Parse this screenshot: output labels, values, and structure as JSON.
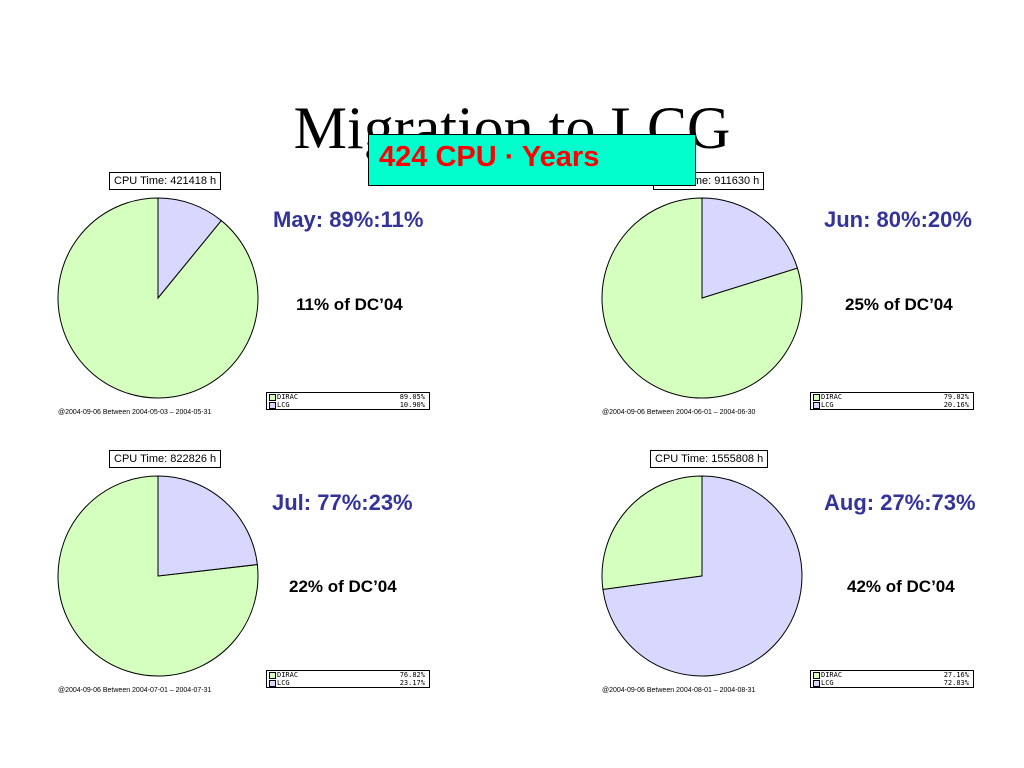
{
  "slide": {
    "title": "Migration to LCG",
    "callout": "424 CPU · Years"
  },
  "colors": {
    "dirac": "#d4ffbe",
    "lcg": "#d8d8ff",
    "month_text": "#333399",
    "callout_bg": "#00ffcc",
    "callout_text": "#ff0000"
  },
  "chart_data": [
    {
      "type": "pie",
      "title": "CPU Time: 421418 h",
      "categories": [
        "DIRAC",
        "LCG"
      ],
      "values": [
        89.05,
        10.9
      ],
      "value_labels": [
        "89.05%",
        "10.90%"
      ],
      "footer": "@2004-09-06  Between  2004-05-03 – 2004-05-31",
      "annotation": "May: 89%:11%",
      "dc_share": "11% of DC’04"
    },
    {
      "type": "pie",
      "title": "CPU Time: 911630 h",
      "categories": [
        "DIRAC",
        "LCG"
      ],
      "values": [
        79.82,
        20.16
      ],
      "value_labels": [
        "79.82%",
        "20.16%"
      ],
      "footer": "@2004-09-06  Between  2004-06-01 – 2004-06-30",
      "annotation": "Jun: 80%:20%",
      "dc_share": "25% of DC’04"
    },
    {
      "type": "pie",
      "title": "CPU Time: 822826 h",
      "categories": [
        "DIRAC",
        "LCG"
      ],
      "values": [
        76.82,
        23.17
      ],
      "value_labels": [
        "76.82%",
        "23.17%"
      ],
      "footer": "@2004-09-06  Between  2004-07-01 – 2004-07-31",
      "annotation": "Jul: 77%:23%",
      "dc_share": "22% of DC’04"
    },
    {
      "type": "pie",
      "title": "CPU Time: 1555808 h",
      "categories": [
        "DIRAC",
        "LCG"
      ],
      "values": [
        27.16,
        72.83
      ],
      "value_labels": [
        "27.16%",
        "72.83%"
      ],
      "footer": "@2004-09-06  Between  2004-08-01 – 2004-08-31",
      "annotation": "Aug: 27%:73%",
      "dc_share": "42% of DC’04"
    }
  ]
}
